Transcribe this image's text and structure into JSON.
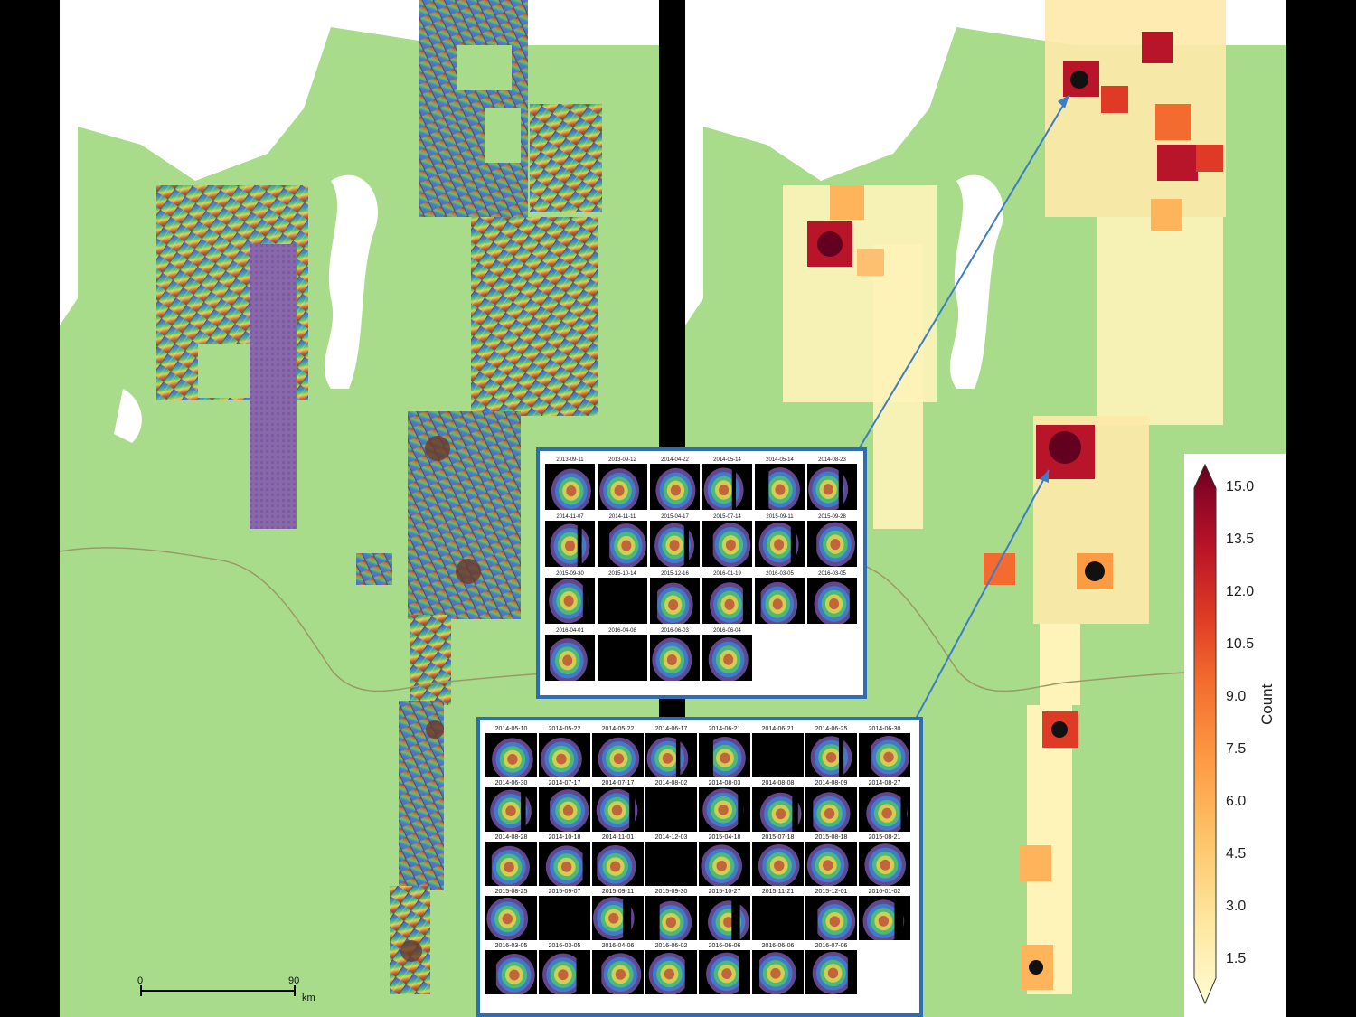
{
  "scale_bar": {
    "start": "0",
    "end": "90",
    "unit": "km"
  },
  "colorbar": {
    "title": "Count",
    "ticks": [
      "15.0",
      "13.5",
      "12.0",
      "10.5",
      "9.0",
      "7.5",
      "6.0",
      "4.5",
      "3.0",
      "1.5"
    ],
    "colors": [
      "#fffbd2",
      "#fee7a0",
      "#fec56a",
      "#fd9b43",
      "#f36b2e",
      "#de3a25",
      "#b81328",
      "#8a0526",
      "#63001f"
    ]
  },
  "colors": {
    "land": "#a8dc8a",
    "water": "#ffffff",
    "inset_border": "#2e6db4",
    "arrow": "#3d7cc9",
    "border_line": "#9a9a66"
  },
  "inset_top": {
    "dates": [
      "2013-09-11",
      "2013-09-12",
      "2014-04-22",
      "2014-05-14",
      "2014-05-14",
      "2014-08-23",
      "2014-11-07",
      "2014-11-11",
      "2015-04-17",
      "2015-07-14",
      "2015-09-11",
      "2015-09-28",
      "2015-09-30",
      "2015-10-14",
      "2015-12-16",
      "2016-01-19",
      "2016-03-05",
      "2016-03-05",
      "2016-04-01",
      "2016-04-08",
      "2016-06-03",
      "2016-06-04"
    ]
  },
  "inset_bottom": {
    "dates": [
      "2014-05-10",
      "2014-05-22",
      "2014-05-22",
      "2014-06-17",
      "2014-06-21",
      "2014-06-21",
      "2014-06-25",
      "2014-06-30",
      "2014-06-30",
      "2014-07-17",
      "2014-07-17",
      "2014-08-02",
      "2014-08-03",
      "2014-08-08",
      "2014-08-09",
      "2014-08-27",
      "2014-08-28",
      "2014-10-18",
      "2014-11-01",
      "2014-12-03",
      "2015-04-18",
      "2015-07-18",
      "2015-08-18",
      "2015-08-21",
      "2015-08-25",
      "2015-09-07",
      "2015-09-11",
      "2015-09-30",
      "2015-10-27",
      "2015-11-21",
      "2015-12-01",
      "2016-01-02",
      "2016-03-05",
      "2016-03-05",
      "2016-04-06",
      "2016-06-02",
      "2016-06-06",
      "2016-06-06",
      "2016-07-06"
    ]
  }
}
